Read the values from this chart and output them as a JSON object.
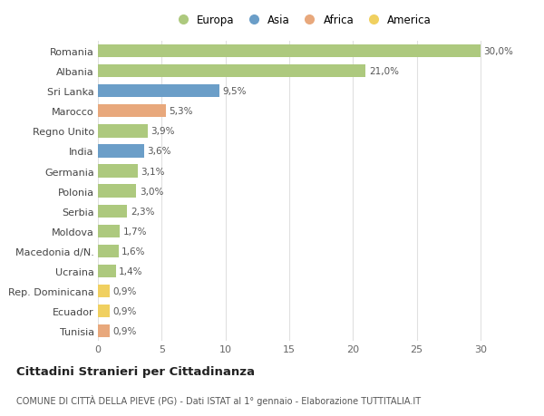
{
  "countries": [
    "Romania",
    "Albania",
    "Sri Lanka",
    "Marocco",
    "Regno Unito",
    "India",
    "Germania",
    "Polonia",
    "Serbia",
    "Moldova",
    "Macedonia d/N.",
    "Ucraina",
    "Rep. Dominicana",
    "Ecuador",
    "Tunisia"
  ],
  "values": [
    30.0,
    21.0,
    9.5,
    5.3,
    3.9,
    3.6,
    3.1,
    3.0,
    2.3,
    1.7,
    1.6,
    1.4,
    0.9,
    0.9,
    0.9
  ],
  "labels": [
    "30,0%",
    "21,0%",
    "9,5%",
    "5,3%",
    "3,9%",
    "3,6%",
    "3,1%",
    "3,0%",
    "2,3%",
    "1,7%",
    "1,6%",
    "1,4%",
    "0,9%",
    "0,9%",
    "0,9%"
  ],
  "continents": [
    "Europa",
    "Europa",
    "Asia",
    "Africa",
    "Europa",
    "Asia",
    "Europa",
    "Europa",
    "Europa",
    "Europa",
    "Europa",
    "Europa",
    "America",
    "America",
    "Africa"
  ],
  "colors": {
    "Europa": "#adc97e",
    "Asia": "#6b9ec8",
    "Africa": "#e8a87c",
    "America": "#f0d060"
  },
  "legend_order": [
    "Europa",
    "Asia",
    "Africa",
    "America"
  ],
  "title": "Cittadini Stranieri per Cittadinanza",
  "subtitle": "COMUNE DI CITTÀ DELLA PIEVE (PG) - Dati ISTAT al 1° gennaio - Elaborazione TUTTITALIA.IT",
  "xlim": [
    0,
    32
  ],
  "xticks": [
    0,
    5,
    10,
    15,
    20,
    25,
    30
  ],
  "background_color": "#ffffff",
  "grid_color": "#e0e0e0",
  "bar_height": 0.65
}
